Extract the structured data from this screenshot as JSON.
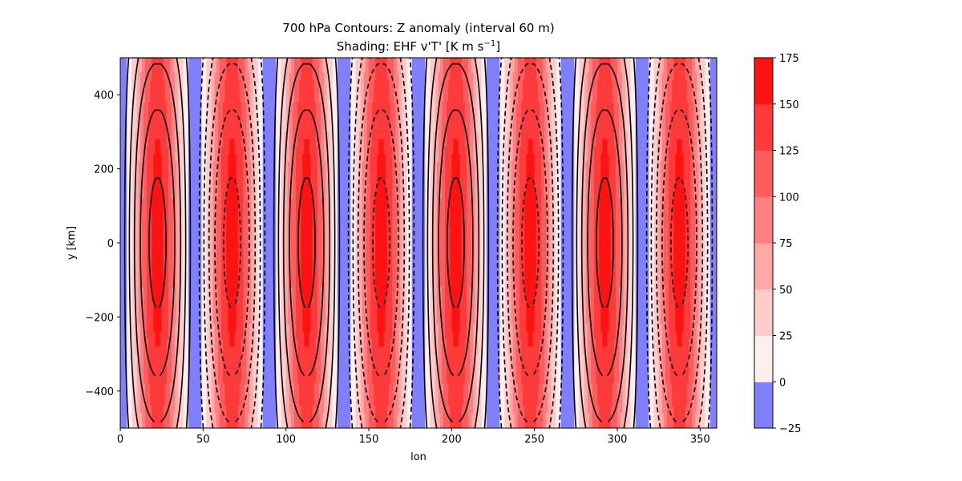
{
  "chart_data": {
    "type": "heatmap",
    "title_line1": "700 hPa     Contours: Z anomaly (interval 60 m)",
    "title_line2_prefix": "Shading: EHF v'T' [K m s",
    "title_line2_exp": "−1",
    "title_line2_suffix": "]",
    "xlabel": "lon",
    "ylabel": "y [km]",
    "xlim": [
      0,
      360
    ],
    "ylim": [
      -500,
      500
    ],
    "xticks": [
      0,
      50,
      100,
      150,
      200,
      250,
      300,
      350
    ],
    "xtick_labels": [
      "0",
      "50",
      "100",
      "150",
      "200",
      "250",
      "300",
      "350"
    ],
    "yticks": [
      -400,
      -200,
      0,
      200,
      400
    ],
    "ytick_labels": [
      "−400",
      "−200",
      "0",
      "200",
      "400"
    ],
    "wave_number": 4,
    "ehf_max": 160,
    "ehf_min": -10,
    "ehf_y_halfwidth": 1150,
    "z_amplitude": 320,
    "z_contour_interval": 60,
    "z_y_scale": 500,
    "z_phase_deg": 0,
    "colorbar": {
      "levels": [
        -25,
        0,
        25,
        50,
        75,
        100,
        125,
        150,
        175
      ],
      "tick_labels": [
        "−25",
        "0",
        "25",
        "50",
        "75",
        "100",
        "125",
        "150",
        "175"
      ],
      "colors": [
        "#8080ff",
        "#ffeeee",
        "#ffcccc",
        "#ffa8a8",
        "#ff8080",
        "#ff5d5d",
        "#ff3a3a",
        "#ff1212"
      ]
    },
    "contour_color": "#000000"
  }
}
